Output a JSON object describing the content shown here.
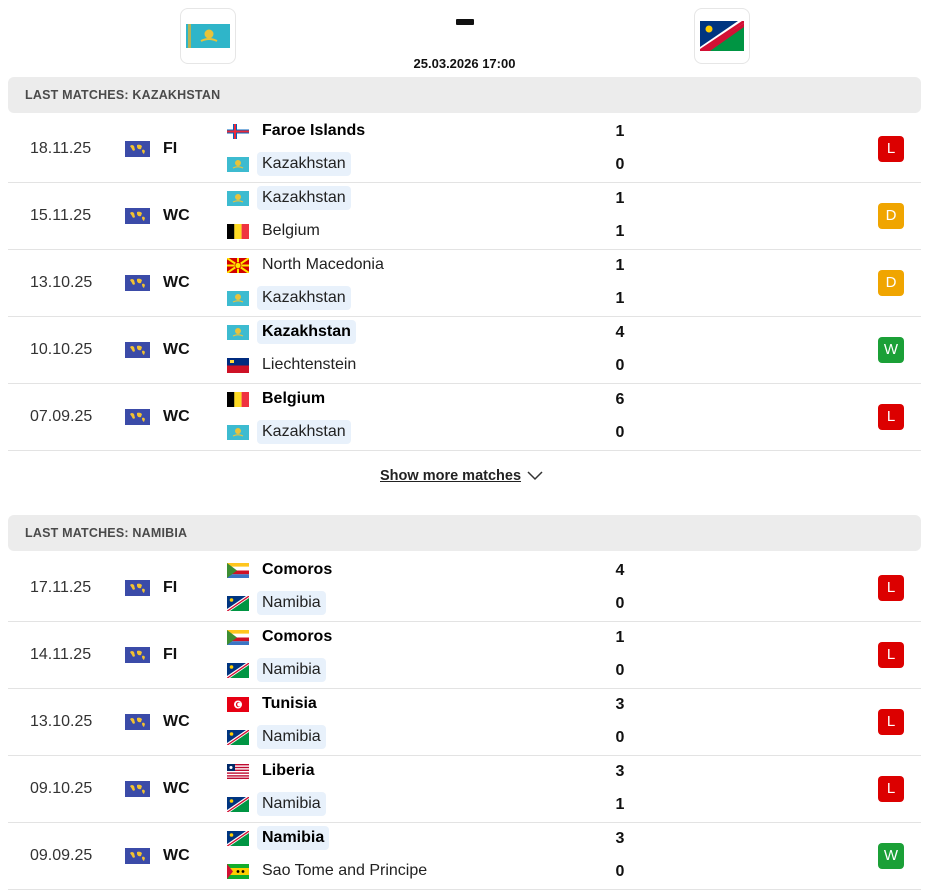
{
  "header": {
    "home_flag": "kazakhstan-flag",
    "away_flag": "namibia-flag",
    "score_separator": "-",
    "datetime": "25.03.2026 17:00"
  },
  "sections": [
    {
      "title": "LAST MATCHES: KAZAKHSTAN",
      "matches": [
        {
          "date": "18.11.25",
          "comp": "FI",
          "home": "Faroe Islands",
          "home_flag": "faroe",
          "away": "Kazakhstan",
          "away_flag": "kaz",
          "home_score": "1",
          "away_score": "0",
          "result": "L",
          "hl": "away",
          "win": "home"
        },
        {
          "date": "15.11.25",
          "comp": "WC",
          "home": "Kazakhstan",
          "home_flag": "kaz",
          "away": "Belgium",
          "away_flag": "bel",
          "home_score": "1",
          "away_score": "1",
          "result": "D",
          "hl": "home",
          "win": ""
        },
        {
          "date": "13.10.25",
          "comp": "WC",
          "home": "North Macedonia",
          "home_flag": "mkd",
          "away": "Kazakhstan",
          "away_flag": "kaz",
          "home_score": "1",
          "away_score": "1",
          "result": "D",
          "hl": "away",
          "win": ""
        },
        {
          "date": "10.10.25",
          "comp": "WC",
          "home": "Kazakhstan",
          "home_flag": "kaz",
          "away": "Liechtenstein",
          "away_flag": "lie",
          "home_score": "4",
          "away_score": "0",
          "result": "W",
          "hl": "home",
          "win": "home"
        },
        {
          "date": "07.09.25",
          "comp": "WC",
          "home": "Belgium",
          "home_flag": "bel",
          "away": "Kazakhstan",
          "away_flag": "kaz",
          "home_score": "6",
          "away_score": "0",
          "result": "L",
          "hl": "away",
          "win": "home"
        }
      ],
      "show_more": "Show more matches"
    },
    {
      "title": "LAST MATCHES: NAMIBIA",
      "matches": [
        {
          "date": "17.11.25",
          "comp": "FI",
          "home": "Comoros",
          "home_flag": "com",
          "away": "Namibia",
          "away_flag": "nam",
          "home_score": "4",
          "away_score": "0",
          "result": "L",
          "hl": "away",
          "win": "home"
        },
        {
          "date": "14.11.25",
          "comp": "FI",
          "home": "Comoros",
          "home_flag": "com",
          "away": "Namibia",
          "away_flag": "nam",
          "home_score": "1",
          "away_score": "0",
          "result": "L",
          "hl": "away",
          "win": "home"
        },
        {
          "date": "13.10.25",
          "comp": "WC",
          "home": "Tunisia",
          "home_flag": "tun",
          "away": "Namibia",
          "away_flag": "nam",
          "home_score": "3",
          "away_score": "0",
          "result": "L",
          "hl": "away",
          "win": "home"
        },
        {
          "date": "09.10.25",
          "comp": "WC",
          "home": "Liberia",
          "home_flag": "lbr",
          "away": "Namibia",
          "away_flag": "nam",
          "home_score": "3",
          "away_score": "1",
          "result": "L",
          "hl": "away",
          "win": "home"
        },
        {
          "date": "09.09.25",
          "comp": "WC",
          "home": "Namibia",
          "home_flag": "nam",
          "away": "Sao Tome and Principe",
          "away_flag": "stp",
          "home_score": "3",
          "away_score": "0",
          "result": "W",
          "hl": "home",
          "win": "home"
        }
      ]
    }
  ],
  "colors": {
    "loss": "#dc0000",
    "draw": "#f0a500",
    "win": "#1ba037",
    "highlight": "#e8f1fb"
  }
}
